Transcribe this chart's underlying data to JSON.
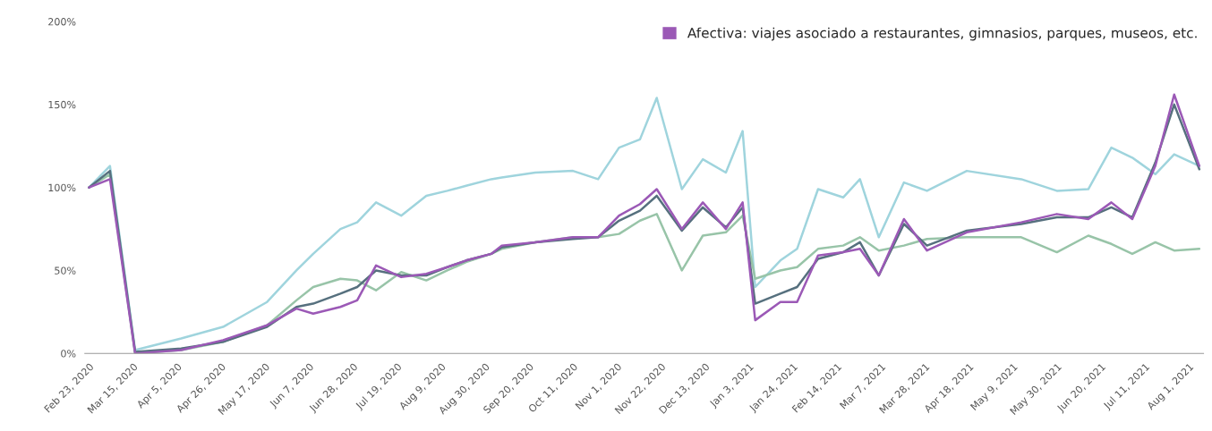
{
  "chart_data": {
    "type": "line",
    "x": [
      "2020-02-23",
      "2020-03-04",
      "2020-03-16",
      "2020-04-07",
      "2020-04-27",
      "2020-05-18",
      "2020-06-01",
      "2020-06-09",
      "2020-06-22",
      "2020-06-30",
      "2020-07-09",
      "2020-07-21",
      "2020-08-02",
      "2020-08-12",
      "2020-08-21",
      "2020-09-02",
      "2020-09-07",
      "2020-09-23",
      "2020-10-11",
      "2020-10-23",
      "2020-11-02",
      "2020-11-12",
      "2020-11-20",
      "2020-12-02",
      "2020-12-12",
      "2020-12-23",
      "2020-12-31",
      "2021-01-06",
      "2021-01-18",
      "2021-01-26",
      "2021-02-05",
      "2021-02-17",
      "2021-02-25",
      "2021-03-06",
      "2021-03-18",
      "2021-03-29",
      "2021-04-17",
      "2021-05-13",
      "2021-05-30",
      "2021-06-14",
      "2021-06-25",
      "2021-07-05",
      "2021-07-16",
      "2021-07-25",
      "2021-08-06"
    ],
    "series": [
      {
        "color": "#9fd4dd",
        "values": [
          100,
          113,
          2,
          9,
          16,
          31,
          50,
          60,
          75,
          79,
          91,
          83,
          95,
          98,
          101,
          105,
          106,
          109,
          110,
          105,
          124,
          129,
          154,
          99,
          117,
          109,
          134,
          40,
          56,
          63,
          99,
          94,
          105,
          70,
          103,
          98,
          110,
          105,
          98,
          99,
          124,
          118,
          108,
          120,
          113
        ]
      },
      {
        "color": "#98c4a8",
        "values": [
          100,
          108,
          0,
          2,
          7,
          17,
          32,
          40,
          45,
          44,
          38,
          49,
          44,
          50,
          55,
          60,
          63,
          67,
          70,
          70,
          72,
          80,
          84,
          50,
          71,
          73,
          83,
          45,
          50,
          52,
          63,
          65,
          70,
          62,
          65,
          69,
          70,
          70,
          61,
          71,
          66,
          60,
          67,
          62,
          63
        ]
      },
      {
        "color": "#56707e",
        "values": [
          100,
          110,
          1,
          3,
          7,
          16,
          28,
          30,
          36,
          40,
          50,
          47,
          47,
          52,
          56,
          60,
          64,
          67,
          69,
          70,
          80,
          86,
          95,
          74,
          88,
          76,
          88,
          30,
          36,
          40,
          57,
          61,
          67,
          47,
          78,
          65,
          74,
          78,
          82,
          82,
          88,
          82,
          115,
          150,
          111
        ]
      },
      {
        "name": "Afectiva: viajes asociado a restaurantes, gimnasios, parques, museos, etc.",
        "color": "#9b59b6",
        "values": [
          100,
          105,
          0,
          2,
          8,
          17,
          27,
          24,
          28,
          32,
          53,
          46,
          48,
          52,
          56,
          60,
          65,
          67,
          70,
          70,
          83,
          90,
          99,
          75,
          91,
          75,
          91,
          20,
          31,
          31,
          59,
          61,
          63,
          47,
          81,
          62,
          73,
          79,
          84,
          81,
          91,
          81,
          113,
          156,
          113
        ]
      }
    ],
    "xlim": [
      "2020-02-21",
      "2021-08-08"
    ],
    "xticks": [
      {
        "value": "2020-02-23",
        "label": "Feb 23, 2020"
      },
      {
        "value": "2020-03-15",
        "label": "Mar 15, 2020"
      },
      {
        "value": "2020-04-05",
        "label": "Apr 5, 2020"
      },
      {
        "value": "2020-04-26",
        "label": "Apr 26, 2020"
      },
      {
        "value": "2020-05-17",
        "label": "May 17, 2020"
      },
      {
        "value": "2020-06-07",
        "label": "Jun 7, 2020"
      },
      {
        "value": "2020-06-28",
        "label": "Jun 28, 2020"
      },
      {
        "value": "2020-07-19",
        "label": "Jul 19, 2020"
      },
      {
        "value": "2020-08-09",
        "label": "Aug 9, 2020"
      },
      {
        "value": "2020-08-30",
        "label": "Aug 30, 2020"
      },
      {
        "value": "2020-09-20",
        "label": "Sep 20, 2020"
      },
      {
        "value": "2020-10-11",
        "label": "Oct 11, 2020"
      },
      {
        "value": "2020-11-01",
        "label": "Nov 1, 2020"
      },
      {
        "value": "2020-11-22",
        "label": "Nov 22, 2020"
      },
      {
        "value": "2020-12-13",
        "label": "Dec 13, 2020"
      },
      {
        "value": "2021-01-03",
        "label": "Jan 3, 2021"
      },
      {
        "value": "2021-01-24",
        "label": "Jan 24, 2021"
      },
      {
        "value": "2021-02-14",
        "label": "Feb 14, 2021"
      },
      {
        "value": "2021-03-07",
        "label": "Mar 7, 2021"
      },
      {
        "value": "2021-03-28",
        "label": "Mar 28, 2021"
      },
      {
        "value": "2021-04-18",
        "label": "Apr 18, 2021"
      },
      {
        "value": "2021-05-09",
        "label": "May 9, 2021"
      },
      {
        "value": "2021-05-30",
        "label": "May 30, 2021"
      },
      {
        "value": "2021-06-20",
        "label": "Jun 20, 2021"
      },
      {
        "value": "2021-07-11",
        "label": "Jul 11, 2021"
      },
      {
        "value": "2021-08-01",
        "label": "Aug 1, 2021"
      }
    ],
    "ylim": [
      0,
      200
    ],
    "yticks": [
      {
        "value": 0,
        "label": "0%"
      },
      {
        "value": 50,
        "label": "50%"
      },
      {
        "value": 100,
        "label": "100%"
      },
      {
        "value": 150,
        "label": "150%"
      },
      {
        "value": 200,
        "label": "200%"
      }
    ],
    "grid": false,
    "legend": "top right",
    "marker": "none",
    "line_style": "solid"
  }
}
